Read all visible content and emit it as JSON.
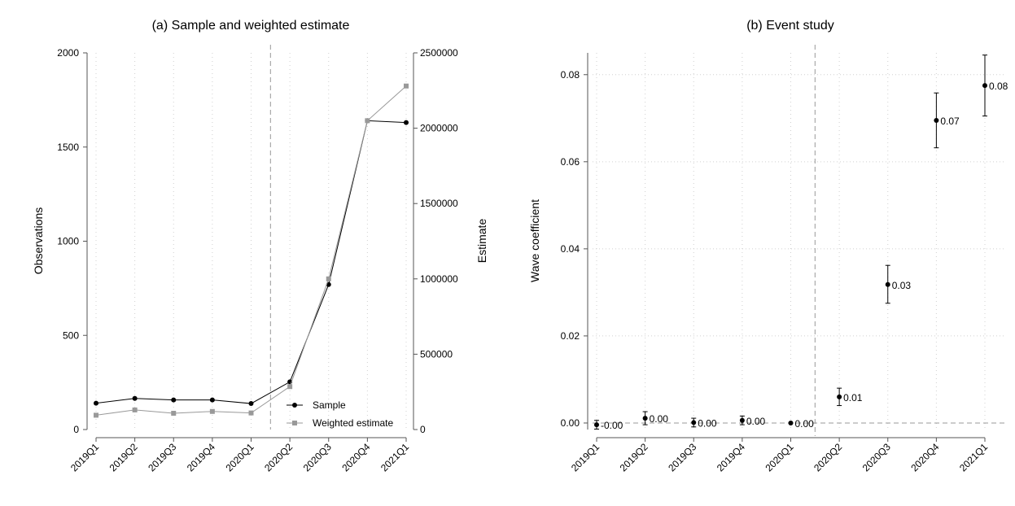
{
  "chart_data": [
    {
      "type": "line",
      "title": "(a) Sample and weighted estimate",
      "xlabel": "",
      "ylabel": "Observations",
      "y2label": "Estimate",
      "categories": [
        "2019Q1",
        "2019Q2",
        "2019Q3",
        "2019Q4",
        "2020Q1",
        "2020Q2",
        "2020Q3",
        "2020Q4",
        "2021Q1"
      ],
      "ylim": [
        0,
        2000
      ],
      "yticks": [
        0,
        500,
        1000,
        1500,
        2000
      ],
      "y2lim": [
        0,
        2500000
      ],
      "y2ticks": [
        0,
        500000,
        1000000,
        1500000,
        2000000,
        2500000
      ],
      "vline_after": "2020Q1",
      "legend": "bottom-right",
      "series": [
        {
          "name": "Sample",
          "axis": "left",
          "color": "#000000",
          "marker": "circle",
          "values": [
            140,
            165,
            157,
            157,
            138,
            253,
            770,
            1640,
            1630
          ]
        },
        {
          "name": "Weighted estimate",
          "axis": "right",
          "color": "#999999",
          "marker": "square",
          "values": [
            95000,
            130000,
            108000,
            120000,
            110000,
            285000,
            1000000,
            2050000,
            2280000
          ]
        }
      ]
    },
    {
      "type": "scatter",
      "title": "(b) Event study",
      "xlabel": "",
      "ylabel": "Wave coefficient",
      "categories": [
        "2019Q1",
        "2019Q2",
        "2019Q3",
        "2019Q4",
        "2020Q1",
        "2020Q2",
        "2020Q3",
        "2020Q4",
        "2021Q1"
      ],
      "ylim": [
        -0.0015,
        0.085
      ],
      "yticks": [
        0.0,
        0.02,
        0.04,
        0.06,
        0.08
      ],
      "ytick_labels": [
        "0.00",
        "0.02",
        "0.04",
        "0.06",
        "0.08"
      ],
      "vline_after": "2020Q1",
      "hline": 0,
      "points": [
        {
          "x": "2019Q1",
          "y": -0.0004,
          "lo": -0.0014,
          "hi": 0.0006,
          "label": "-0.00"
        },
        {
          "x": "2019Q2",
          "y": 0.0011,
          "lo": -0.0004,
          "hi": 0.0026,
          "label": "0.00"
        },
        {
          "x": "2019Q3",
          "y": 0.0001,
          "lo": -0.0009,
          "hi": 0.0011,
          "label": "0.00"
        },
        {
          "x": "2019Q4",
          "y": 0.0006,
          "lo": -0.0004,
          "hi": 0.0016,
          "label": "0.00"
        },
        {
          "x": "2020Q1",
          "y": 0.0,
          "lo": 0.0,
          "hi": 0.0,
          "label": "0.00"
        },
        {
          "x": "2020Q2",
          "y": 0.006,
          "lo": 0.004,
          "hi": 0.008,
          "label": "0.01"
        },
        {
          "x": "2020Q3",
          "y": 0.0318,
          "lo": 0.0275,
          "hi": 0.0362,
          "label": "0.03"
        },
        {
          "x": "2020Q4",
          "y": 0.0695,
          "lo": 0.0632,
          "hi": 0.0758,
          "label": "0.07"
        },
        {
          "x": "2021Q1",
          "y": 0.0775,
          "lo": 0.0705,
          "hi": 0.0845,
          "label": "0.08"
        }
      ]
    }
  ]
}
